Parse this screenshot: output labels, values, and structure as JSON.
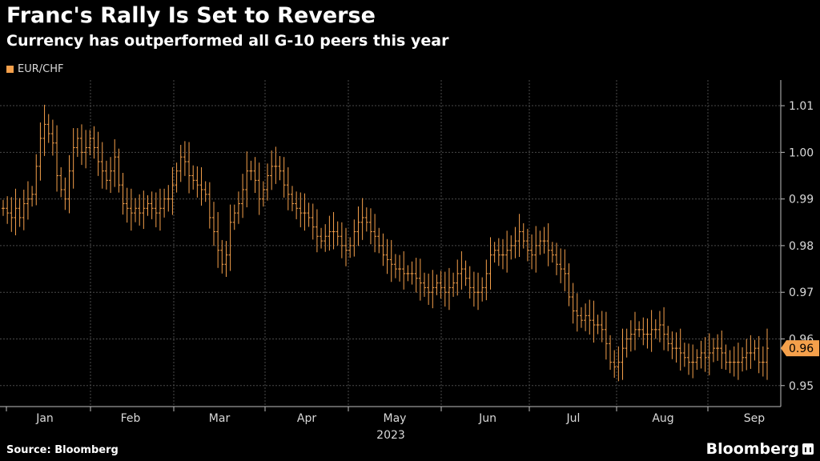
{
  "header": {
    "title": "Franc's Rally Is Set to Reverse",
    "subtitle": "Currency has outperformed all G-10 peers this year"
  },
  "legend": {
    "label": "EUR/CHF",
    "color": "#f5a04b"
  },
  "footer": {
    "source": "Source: Bloomberg",
    "brand": "Bloomberg"
  },
  "chart_data": {
    "type": "ohlc",
    "title": "Franc's Rally Is Set to Reverse",
    "subtitle": "Currency has outperformed all G-10 peers this year",
    "series": [
      {
        "name": "EUR/CHF",
        "color": "#f5a04b"
      }
    ],
    "xlabel": "2023",
    "x_ticks": [
      "Jan",
      "Feb",
      "Mar",
      "Apr",
      "May",
      "Jun",
      "Jul",
      "Aug",
      "Sep"
    ],
    "y_ticks": [
      0.95,
      0.96,
      0.97,
      0.98,
      0.99,
      1.0,
      1.01
    ],
    "y_tick_labels": [
      "0.95",
      "0.96",
      "0.97",
      "0.98",
      "0.99",
      "1.00",
      "1.01"
    ],
    "ylim": [
      0.9455,
      1.0155
    ],
    "y_axis_position": "right",
    "grid": true,
    "last_value": 0.958,
    "last_value_label": "0.96",
    "closes": [
      0.988,
      0.987,
      0.986,
      0.988,
      0.986,
      0.989,
      0.99,
      0.991,
      0.997,
      1.003,
      1.006,
      1.004,
      1.002,
      0.995,
      0.992,
      0.99,
      0.996,
      1.001,
      1.003,
      1.0,
      1.001,
      1.003,
      1.001,
      0.998,
      0.996,
      0.994,
      0.996,
      0.999,
      0.993,
      0.989,
      0.988,
      0.987,
      0.988,
      0.987,
      0.988,
      0.989,
      0.988,
      0.987,
      0.988,
      0.99,
      0.99,
      0.993,
      0.996,
      0.999,
      0.998,
      0.995,
      0.994,
      0.993,
      0.992,
      0.991,
      0.986,
      0.983,
      0.979,
      0.976,
      0.978,
      0.985,
      0.987,
      0.989,
      0.992,
      0.996,
      0.996,
      0.994,
      0.99,
      0.992,
      0.995,
      0.997,
      0.997,
      0.996,
      0.993,
      0.991,
      0.989,
      0.988,
      0.987,
      0.987,
      0.986,
      0.984,
      0.982,
      0.981,
      0.982,
      0.983,
      0.983,
      0.982,
      0.98,
      0.979,
      0.98,
      0.983,
      0.985,
      0.986,
      0.985,
      0.983,
      0.982,
      0.98,
      0.978,
      0.977,
      0.976,
      0.975,
      0.975,
      0.974,
      0.974,
      0.974,
      0.973,
      0.972,
      0.971,
      0.97,
      0.971,
      0.972,
      0.971,
      0.97,
      0.971,
      0.972,
      0.974,
      0.975,
      0.973,
      0.971,
      0.97,
      0.97,
      0.971,
      0.974,
      0.978,
      0.979,
      0.978,
      0.978,
      0.979,
      0.98,
      0.981,
      0.983,
      0.981,
      0.979,
      0.978,
      0.98,
      0.981,
      0.981,
      0.979,
      0.978,
      0.976,
      0.975,
      0.974,
      0.969,
      0.966,
      0.965,
      0.964,
      0.965,
      0.964,
      0.963,
      0.963,
      0.962,
      0.959,
      0.955,
      0.954,
      0.955,
      0.958,
      0.96,
      0.961,
      0.962,
      0.962,
      0.961,
      0.961,
      0.962,
      0.962,
      0.963,
      0.961,
      0.959,
      0.958,
      0.958,
      0.957,
      0.956,
      0.955,
      0.955,
      0.956,
      0.957,
      0.956,
      0.957,
      0.958,
      0.958,
      0.957,
      0.955,
      0.955,
      0.955,
      0.955,
      0.956,
      0.957,
      0.957,
      0.958,
      0.955,
      0.955,
      0.958
    ]
  }
}
